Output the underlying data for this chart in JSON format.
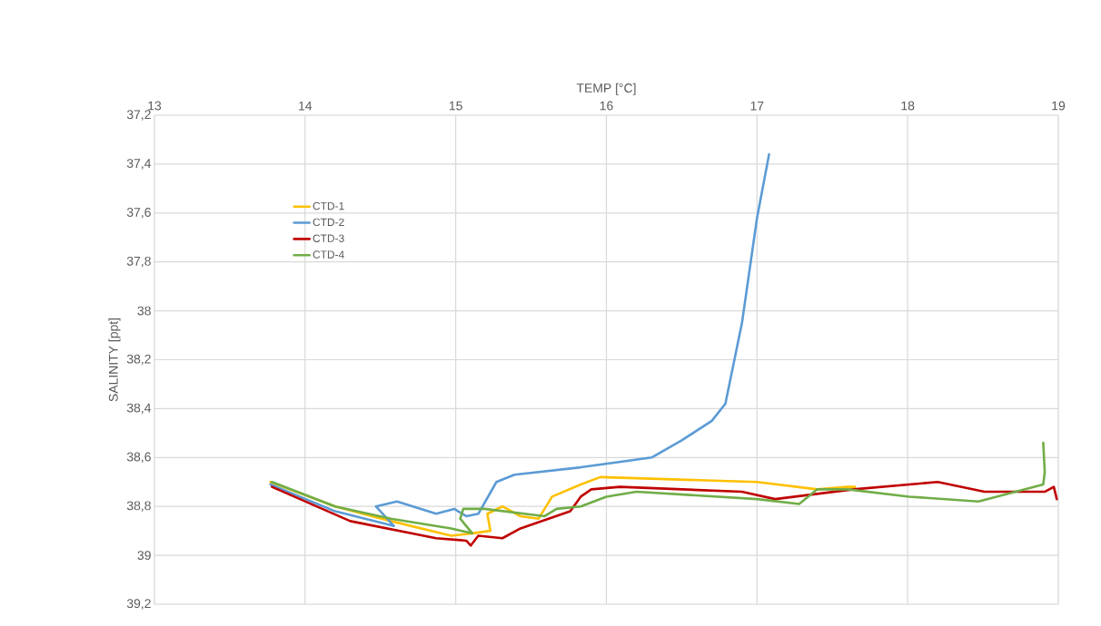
{
  "chart_data": {
    "type": "line",
    "xlabel": "TEMP [°C]",
    "ylabel": "SALINITY [ppt]",
    "xlim": [
      13,
      19
    ],
    "xticks": [
      13,
      14,
      15,
      16,
      17,
      18,
      19
    ],
    "ylim": [
      39.2,
      37.2
    ],
    "yticks": [
      {
        "value": 37.2,
        "label": "37,2"
      },
      {
        "value": 37.4,
        "label": "37,4"
      },
      {
        "value": 37.6,
        "label": "37,6"
      },
      {
        "value": 37.8,
        "label": "37,8"
      },
      38,
      {
        "value": 38.2,
        "label": "38,2"
      },
      {
        "value": 38.4,
        "label": "38,4"
      },
      {
        "value": 38.6,
        "label": "38,6"
      },
      {
        "value": 38.8,
        "label": "38,8"
      },
      39,
      {
        "value": 39.2,
        "label": "39,2"
      }
    ],
    "grid": true,
    "legend": "top left",
    "marker": "none",
    "line_style": "solid",
    "series": [
      {
        "name": "CTD-1",
        "color": "#ffc000",
        "x": [
          13.77,
          14.2,
          14.57,
          14.97,
          15.11,
          15.23,
          15.21,
          15.31,
          15.43,
          15.55,
          15.64,
          15.83,
          15.96,
          17.0,
          17.4,
          17.6,
          17.65
        ],
        "values": [
          38.7,
          38.8,
          38.86,
          38.92,
          38.91,
          38.9,
          38.83,
          38.8,
          38.84,
          38.85,
          38.76,
          38.71,
          38.68,
          38.7,
          38.73,
          38.72,
          38.72
        ]
      },
      {
        "name": "CTD-2",
        "color": "#5b9bd5",
        "x": [
          13.77,
          14.2,
          14.59,
          14.47,
          14.61,
          14.87,
          14.99,
          15.07,
          15.15,
          15.27,
          15.39,
          15.83,
          16.3,
          16.5,
          16.7,
          16.79,
          16.9,
          17.0,
          17.08
        ],
        "values": [
          38.71,
          38.82,
          38.88,
          38.8,
          38.78,
          38.83,
          38.81,
          38.84,
          38.83,
          38.7,
          38.67,
          38.64,
          38.6,
          38.53,
          38.45,
          38.38,
          38.05,
          37.62,
          37.36
        ]
      },
      {
        "name": "CTD-3",
        "color": "#c00000",
        "x": [
          13.78,
          14.3,
          14.87,
          15.07,
          15.1,
          15.15,
          15.31,
          15.43,
          15.76,
          15.83,
          15.9,
          16.09,
          16.9,
          17.12,
          17.64,
          18.2,
          18.51,
          18.91,
          18.97,
          18.99
        ],
        "values": [
          38.72,
          38.86,
          38.93,
          38.94,
          38.96,
          38.92,
          38.93,
          38.89,
          38.82,
          38.76,
          38.73,
          38.72,
          38.74,
          38.77,
          38.73,
          38.7,
          38.74,
          38.74,
          38.72,
          38.77
        ]
      },
      {
        "name": "CTD-4",
        "color": "#70ad47",
        "x": [
          13.78,
          14.2,
          14.57,
          14.97,
          15.11,
          15.03,
          15.05,
          15.19,
          15.59,
          15.67,
          15.83,
          16.0,
          16.2,
          17.0,
          17.28,
          17.4,
          17.6,
          18.01,
          18.47,
          18.9,
          18.91,
          18.9
        ],
        "values": [
          38.7,
          38.8,
          38.85,
          38.89,
          38.91,
          38.85,
          38.81,
          38.81,
          38.84,
          38.81,
          38.8,
          38.76,
          38.74,
          38.77,
          38.79,
          38.73,
          38.73,
          38.76,
          38.78,
          38.71,
          38.66,
          38.54
        ]
      }
    ]
  }
}
